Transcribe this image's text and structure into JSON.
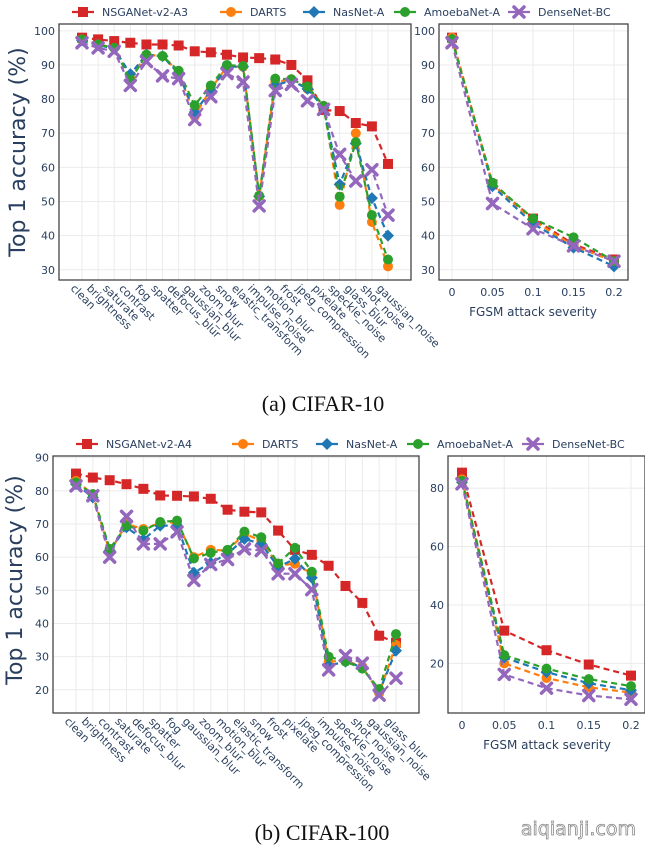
{
  "figure": {
    "watermark": "aiqianji.com"
  },
  "series_styles": [
    {
      "key": "nsganet",
      "color": "#d62728",
      "marker": "square"
    },
    {
      "key": "darts",
      "color": "#ff7f0e",
      "marker": "circle"
    },
    {
      "key": "nasnet",
      "color": "#1f77b4",
      "marker": "diamond"
    },
    {
      "key": "amoeba",
      "color": "#2ca02c",
      "marker": "circle"
    },
    {
      "key": "densenet",
      "color": "#9467bd",
      "marker": "x"
    }
  ],
  "panels": [
    {
      "caption": "(a) CIFAR-10",
      "legend": [
        "NSGANet-v2-A3",
        "DARTS",
        "NasNet-A",
        "AmoebaNet-A",
        "DenseNet-BC"
      ]
    },
    {
      "caption": "(b) CIFAR-100",
      "legend": [
        "NSGANet-v2-A4",
        "DARTS",
        "NasNet-A",
        "AmoebaNet-A",
        "DenseNet-BC"
      ]
    }
  ],
  "chart_data": [
    {
      "id": "cifar10-corruption",
      "type": "line",
      "title": "",
      "xlabel": "",
      "ylabel": "Top 1 accuracy (%)",
      "ylim": [
        27,
        102
      ],
      "yticks": [
        30,
        40,
        50,
        60,
        70,
        80,
        90,
        100
      ],
      "grid": true,
      "legend_position": "top",
      "categories": [
        "clean",
        "brightness",
        "saturate",
        "contrast",
        "fog",
        "spatter",
        "defocus_blur",
        "gaussian_blur",
        "zoom_blur",
        "snow",
        "elastic_transform",
        "impulse_noise",
        "motion_blur",
        "frost",
        "jpeg_compression",
        "pixelate",
        "speckle_noise",
        "glass_blur",
        "shot_noise",
        "gaussian_noise"
      ],
      "series": [
        {
          "name": "NSGANet-v2-A3",
          "values": [
            98,
            97.5,
            97,
            96.5,
            96,
            96,
            95.7,
            94,
            93.7,
            93,
            92.2,
            92,
            91.6,
            90,
            85.5,
            76.8,
            76.5,
            73,
            72,
            61
          ]
        },
        {
          "name": "DARTS",
          "values": [
            97.5,
            96,
            95,
            86,
            93,
            92.6,
            88,
            75,
            83,
            89.5,
            89.5,
            51.5,
            85,
            85.8,
            83,
            78,
            49,
            70,
            44,
            31
          ]
        },
        {
          "name": "NasNet-A",
          "values": [
            97.2,
            95.8,
            94.8,
            87.3,
            93,
            92.6,
            87.5,
            76.2,
            82.5,
            89.5,
            89.5,
            51.5,
            84,
            85.5,
            83,
            77.5,
            55,
            67,
            51,
            40
          ]
        },
        {
          "name": "AmoebaNet-A",
          "values": [
            97.5,
            96,
            95,
            85.5,
            93,
            92.6,
            88.3,
            78.2,
            84,
            90,
            89.7,
            51.7,
            86,
            85.8,
            83.7,
            78,
            51.4,
            67.4,
            46,
            33
          ]
        },
        {
          "name": "DenseNet-BC",
          "values": [
            96.5,
            95,
            94,
            84,
            91,
            86.8,
            86,
            74,
            80.7,
            87.5,
            85,
            48.7,
            82.5,
            84.3,
            79.5,
            77,
            63.8,
            56,
            59.3,
            46
          ]
        }
      ]
    },
    {
      "id": "cifar10-fgsm",
      "type": "line",
      "title": "",
      "xlabel": "FGSM attack severity",
      "ylabel": "",
      "ylim": [
        27,
        102
      ],
      "yticks": [
        30,
        40,
        50,
        60,
        70,
        80,
        90,
        100
      ],
      "xlim": [
        -0.01,
        0.21
      ],
      "xticks": [
        0,
        0.05,
        0.1,
        0.15,
        0.2
      ],
      "xtick_labels": [
        "0",
        "0.05",
        "0.1",
        "0.15",
        "0.2"
      ],
      "grid": true,
      "x": [
        0,
        0.05,
        0.1,
        0.15,
        0.2
      ],
      "series": [
        {
          "name": "NSGANet-v2-A3",
          "values": [
            98,
            55,
            45,
            37.5,
            33
          ]
        },
        {
          "name": "DARTS",
          "values": [
            98,
            55,
            44.5,
            37,
            32.5
          ]
        },
        {
          "name": "NasNet-A",
          "values": [
            97.5,
            54.5,
            43.5,
            36.5,
            31
          ]
        },
        {
          "name": "AmoebaNet-A",
          "values": [
            97.5,
            55.5,
            45,
            39.5,
            32.5
          ]
        },
        {
          "name": "DenseNet-BC",
          "values": [
            96.5,
            49.4,
            42,
            37,
            32.5
          ]
        }
      ]
    },
    {
      "id": "cifar100-corruption",
      "type": "line",
      "title": "",
      "xlabel": "",
      "ylabel": "Top 1 accuracy (%)",
      "ylim": [
        13,
        90.5
      ],
      "yticks": [
        20,
        30,
        40,
        50,
        60,
        70,
        80,
        90
      ],
      "grid": true,
      "legend_position": "top",
      "categories": [
        "clean",
        "brightness",
        "contrast",
        "saturate",
        "defocus_blur",
        "spatter",
        "fog",
        "gaussian_blur",
        "zoom_blur",
        "motion_blur",
        "elastic_transform",
        "snow",
        "frost",
        "pixelate",
        "jpeg_compression",
        "impulse_noise",
        "speckle_noise",
        "shot_noise",
        "gaussian_noise",
        "glass_blur"
      ],
      "series": [
        {
          "name": "NSGANet-v2-A4",
          "values": [
            85.2,
            84,
            83.2,
            82,
            80.6,
            78.6,
            78.5,
            78.3,
            77.6,
            74.3,
            73.7,
            73.5,
            68,
            62.2,
            60.7,
            57.4,
            51.3,
            46.2,
            36.3,
            34.2
          ]
        },
        {
          "name": "DARTS",
          "values": [
            83,
            79,
            61.5,
            70,
            68.5,
            70.3,
            70.5,
            60,
            62.2,
            62,
            67,
            65,
            57.5,
            58,
            55,
            28.5,
            28.8,
            27,
            19,
            33.5
          ]
        },
        {
          "name": "NasNet-A",
          "values": [
            82,
            78,
            62,
            69,
            65.3,
            69.5,
            69.5,
            55.3,
            58.3,
            61,
            65.5,
            64,
            57,
            59.5,
            53.8,
            27.3,
            28.5,
            26.8,
            19.4,
            31.8
          ]
        },
        {
          "name": "AmoebaNet-A",
          "values": [
            82.5,
            79,
            62.5,
            69.5,
            68,
            70.6,
            71,
            59.6,
            61.3,
            62.2,
            67.7,
            66,
            58.1,
            62.8,
            55.6,
            30,
            28.5,
            26.4,
            20.2,
            36.8
          ]
        },
        {
          "name": "DenseNet-BC",
          "values": [
            81.5,
            78.5,
            60,
            72.3,
            64,
            64,
            67.6,
            53,
            57.8,
            59.3,
            62.5,
            62,
            55,
            55,
            50.2,
            26,
            30.3,
            28,
            18.4,
            23.5
          ]
        }
      ]
    },
    {
      "id": "cifar100-fgsm",
      "type": "line",
      "title": "",
      "xlabel": "FGSM attack severity",
      "ylabel": "",
      "ylim": [
        3,
        91
      ],
      "yticks": [
        20,
        40,
        60,
        80
      ],
      "xlim": [
        -0.01,
        0.21
      ],
      "xticks": [
        0,
        0.05,
        0.1,
        0.15,
        0.2
      ],
      "xtick_labels": [
        "0",
        "0.05",
        "0.1",
        "0.15",
        "0.2"
      ],
      "grid": true,
      "x": [
        0,
        0.05,
        0.1,
        0.15,
        0.2
      ],
      "series": [
        {
          "name": "NSGANet-v2-A4",
          "values": [
            85.3,
            31.2,
            24.5,
            19.6,
            15.8
          ]
        },
        {
          "name": "DARTS",
          "values": [
            83,
            20,
            15,
            11.8,
            10
          ]
        },
        {
          "name": "NasNet-A",
          "values": [
            82,
            22,
            17,
            13.2,
            10.8
          ]
        },
        {
          "name": "AmoebaNet-A",
          "values": [
            82.5,
            22.8,
            18.2,
            14.6,
            12.2
          ]
        },
        {
          "name": "DenseNet-BC",
          "values": [
            81.5,
            16.2,
            11.5,
            9,
            7.7
          ]
        }
      ]
    }
  ]
}
